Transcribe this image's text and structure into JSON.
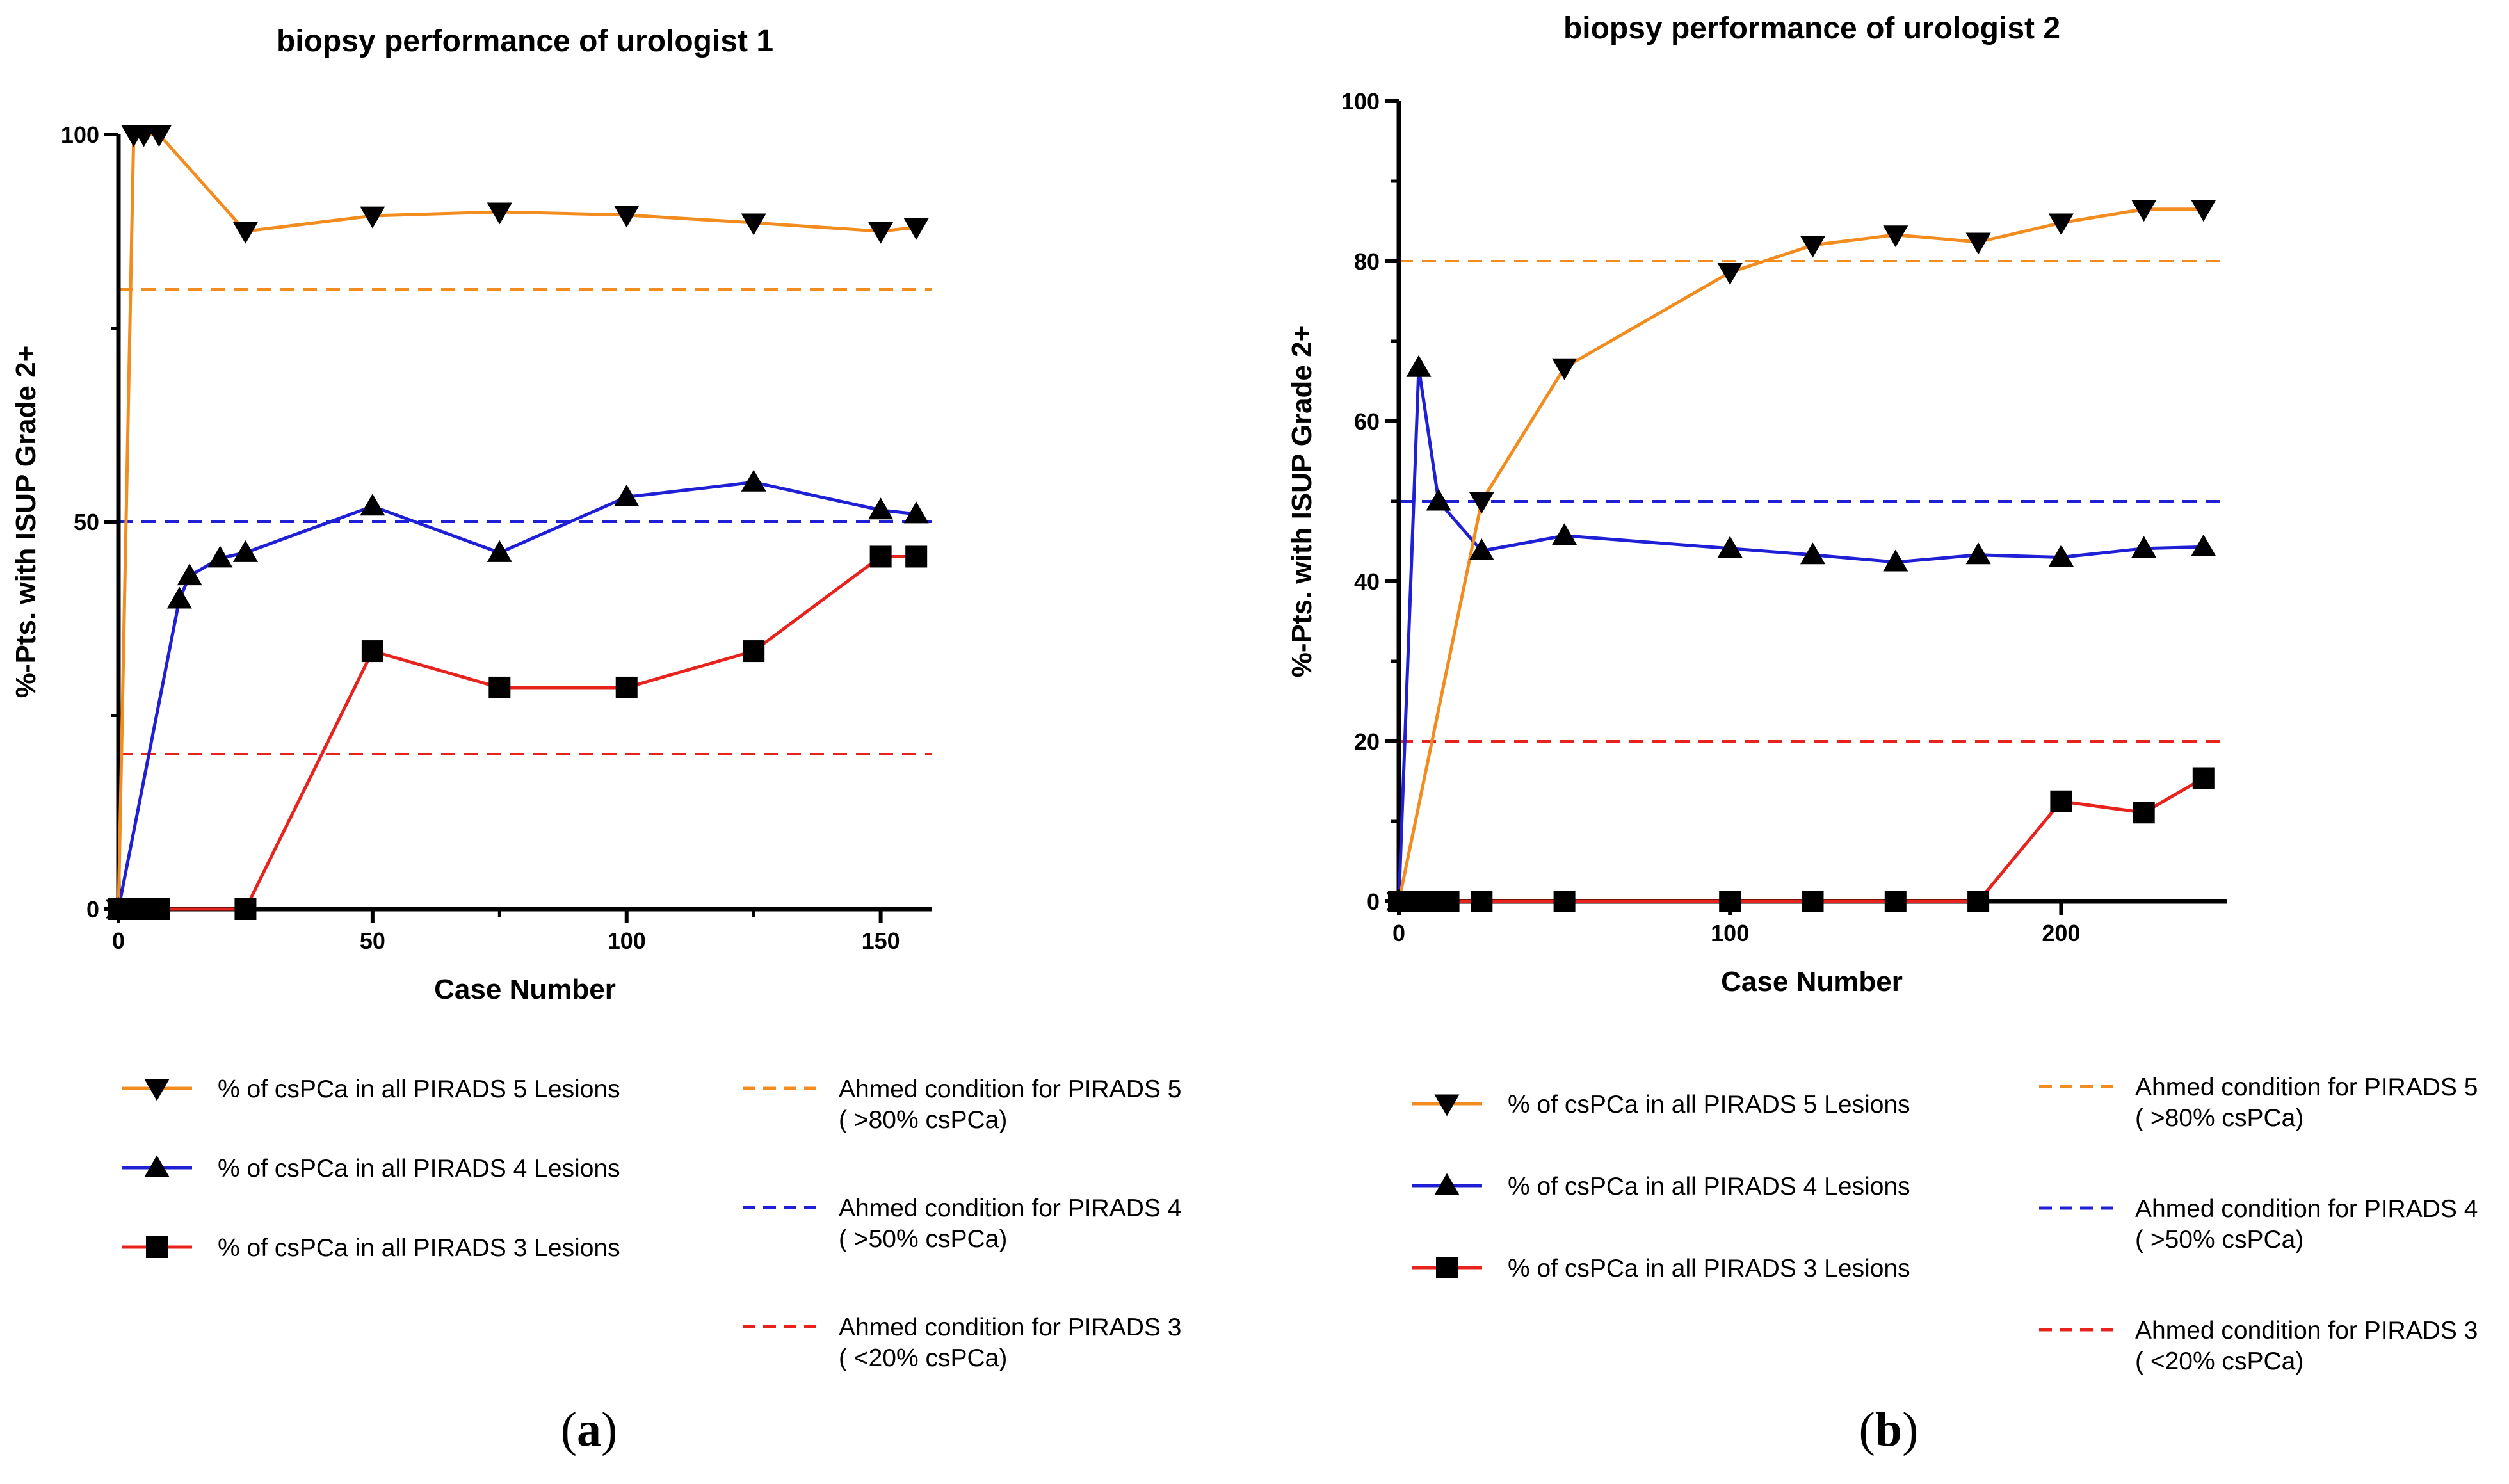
{
  "figure": {
    "panel_labels": [
      "a",
      "b"
    ]
  },
  "chart_data": [
    {
      "type": "line",
      "title": "biopsy performance of urologist 1",
      "xlabel": "Case Number",
      "ylabel": "%-Pts. with ISUP Grade 2+",
      "xlim": [
        0,
        160
      ],
      "ylim": [
        0,
        100
      ],
      "xticks": [
        0,
        50,
        100,
        150
      ],
      "yticks": [
        0,
        50,
        100
      ],
      "series": [
        {
          "name": "% of csPCa in all PIRADS 5 Lesions",
          "color": "#F28C1E",
          "marker": "triangle-down",
          "x": [
            0,
            3,
            5,
            8,
            25,
            50,
            75,
            100,
            125,
            150,
            157
          ],
          "y": [
            0,
            100,
            100,
            100,
            87.5,
            89.5,
            90,
            89.6,
            88.6,
            87.5,
            88
          ]
        },
        {
          "name": "% of csPCa in all PIRADS 4 Lesions",
          "color": "#1F1FD6",
          "marker": "triangle-up",
          "x": [
            0,
            12,
            14,
            20,
            25,
            50,
            75,
            100,
            125,
            150,
            157
          ],
          "y": [
            0,
            40,
            43,
            45.3,
            46,
            52,
            46,
            53.2,
            55.1,
            51.5,
            51
          ]
        },
        {
          "name": "% of csPCa in all PIRADS 3 Lesions",
          "color": "#E8231E",
          "marker": "square",
          "x": [
            0,
            3,
            5,
            8,
            25,
            50,
            75,
            100,
            125,
            150,
            157
          ],
          "y": [
            0,
            0,
            0,
            0,
            0,
            33.3,
            28.6,
            28.6,
            33.3,
            45.5,
            45.5
          ]
        }
      ],
      "reference_lines": [
        {
          "name": "Ahmed condition for PIRADS 5",
          "sub": "( >80% csPCa)",
          "y": 80,
          "color": "#F28C1E"
        },
        {
          "name": "Ahmed condition for PIRADS 4",
          "sub": "( >50% csPCa)",
          "y": 50,
          "color": "#1F1FD6"
        },
        {
          "name": "Ahmed condition for PIRADS 3",
          "sub": "( <20% csPCa)",
          "y": 20,
          "color": "#E8231E"
        }
      ]
    },
    {
      "type": "line",
      "title": "biopsy performance of urologist 2",
      "xlabel": "Case Number",
      "ylabel": "%-Pts. with ISUP Grade 2+",
      "xlim": [
        0,
        250
      ],
      "ylim": [
        0,
        100
      ],
      "xticks": [
        0,
        100,
        200
      ],
      "yticks": [
        0,
        20,
        40,
        60,
        80,
        100
      ],
      "series": [
        {
          "name": "% of csPCa in all PIRADS 5 Lesions",
          "color": "#F28C1E",
          "marker": "triangle-down",
          "x": [
            0,
            25,
            50,
            100,
            125,
            150,
            175,
            200,
            225,
            243
          ],
          "y": [
            0,
            50,
            66.7,
            78.6,
            82,
            83.3,
            82.4,
            84.8,
            86.5,
            86.5
          ]
        },
        {
          "name": "% of csPCa in all PIRADS 4 Lesions",
          "color": "#1F1FD6",
          "marker": "triangle-up",
          "x": [
            0,
            6,
            12,
            25,
            50,
            100,
            125,
            150,
            175,
            200,
            225,
            243
          ],
          "y": [
            0,
            66.7,
            50,
            43.8,
            45.7,
            44.1,
            43.3,
            42.4,
            43.3,
            43,
            44.1,
            44.3
          ]
        },
        {
          "name": "% of csPCa in all PIRADS 3 Lesions",
          "color": "#E8231E",
          "marker": "square",
          "x": [
            0,
            3,
            6,
            9,
            15,
            25,
            50,
            100,
            125,
            150,
            175,
            200,
            225,
            243
          ],
          "y": [
            0,
            0,
            0,
            0,
            0,
            0,
            0,
            0,
            0,
            0,
            0,
            12.5,
            11.1,
            15.4
          ]
        }
      ],
      "reference_lines": [
        {
          "name": "Ahmed condition for PIRADS 5",
          "sub": "( >80% csPCa)",
          "y": 80,
          "color": "#F28C1E"
        },
        {
          "name": "Ahmed condition for PIRADS 4",
          "sub": "( >50% csPCa)",
          "y": 50,
          "color": "#1F1FD6"
        },
        {
          "name": "Ahmed condition for PIRADS 3",
          "sub": "( <20% csPCa)",
          "y": 20,
          "color": "#E8231E"
        }
      ]
    }
  ]
}
